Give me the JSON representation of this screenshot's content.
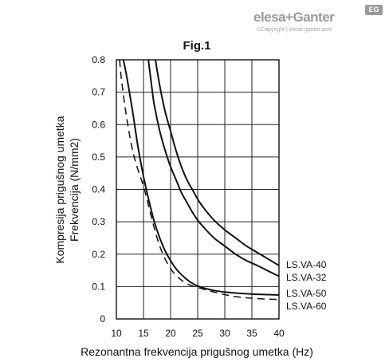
{
  "brand": {
    "name": "elesa+Ganter",
    "badge": "EG",
    "copyright": "©Copyright | elesa-ganter.com"
  },
  "chart_data": {
    "type": "line",
    "title": "Fig.1",
    "xlabel": "Rezonantna frekvencija prigušnog umetka (Hz)",
    "ylabel": [
      "Kompresija prigušnog umetka",
      "Frekvencija (N/mm2)"
    ],
    "xlim": [
      10,
      40
    ],
    "ylim": [
      0,
      0.8
    ],
    "xticks": [
      "10",
      "15",
      "20",
      "25",
      "30",
      "35",
      "40"
    ],
    "yticks": [
      "0",
      "0.1",
      "0.2",
      "0.3",
      "0.4",
      "0.5",
      "0.6",
      "0.7",
      "0.8"
    ],
    "grid": true,
    "series": [
      {
        "name": "LS.VA-40",
        "style": "solid",
        "x": [
          17.2,
          18,
          19,
          20,
          21,
          22,
          23,
          24,
          25,
          26,
          28,
          30,
          32,
          34,
          36,
          38,
          40
        ],
        "y": [
          0.8,
          0.72,
          0.64,
          0.58,
          0.52,
          0.47,
          0.43,
          0.4,
          0.37,
          0.345,
          0.305,
          0.275,
          0.25,
          0.225,
          0.205,
          0.185,
          0.165
        ]
      },
      {
        "name": "LS.VA-32",
        "style": "solid",
        "x": [
          15.9,
          16.5,
          17,
          18,
          19,
          20,
          21,
          22,
          23,
          24,
          25,
          26,
          28,
          30,
          32,
          34,
          36,
          38,
          40
        ],
        "y": [
          0.8,
          0.72,
          0.66,
          0.58,
          0.52,
          0.47,
          0.43,
          0.39,
          0.36,
          0.33,
          0.305,
          0.285,
          0.25,
          0.225,
          0.2,
          0.18,
          0.165,
          0.148,
          0.132
        ]
      },
      {
        "name": "LS.VA-50",
        "style": "solid",
        "x": [
          11.3,
          12,
          13,
          14,
          15,
          16,
          17,
          18,
          19,
          20,
          21,
          22,
          23,
          24,
          25,
          26,
          28,
          30,
          32,
          35,
          38,
          40
        ],
        "y": [
          0.8,
          0.74,
          0.64,
          0.53,
          0.44,
          0.365,
          0.3,
          0.25,
          0.21,
          0.18,
          0.155,
          0.137,
          0.122,
          0.11,
          0.102,
          0.096,
          0.088,
          0.083,
          0.08,
          0.077,
          0.075,
          0.074
        ]
      },
      {
        "name": "LS.VA-60",
        "style": "dashed",
        "x": [
          10.6,
          11,
          12,
          13,
          14,
          15,
          16,
          17,
          18,
          19,
          20,
          21,
          22,
          23,
          24,
          25,
          26,
          28,
          30,
          32,
          35,
          38,
          40
        ],
        "y": [
          0.8,
          0.73,
          0.61,
          0.52,
          0.46,
          0.41,
          0.345,
          0.28,
          0.225,
          0.185,
          0.155,
          0.135,
          0.12,
          0.109,
          0.102,
          0.097,
          0.092,
          0.083,
          0.075,
          0.069,
          0.064,
          0.061,
          0.06
        ]
      }
    ],
    "legend_labels": [
      "LS.VA-40",
      "LS.VA-32",
      "LS.VA-50",
      "LS.VA-60"
    ]
  }
}
